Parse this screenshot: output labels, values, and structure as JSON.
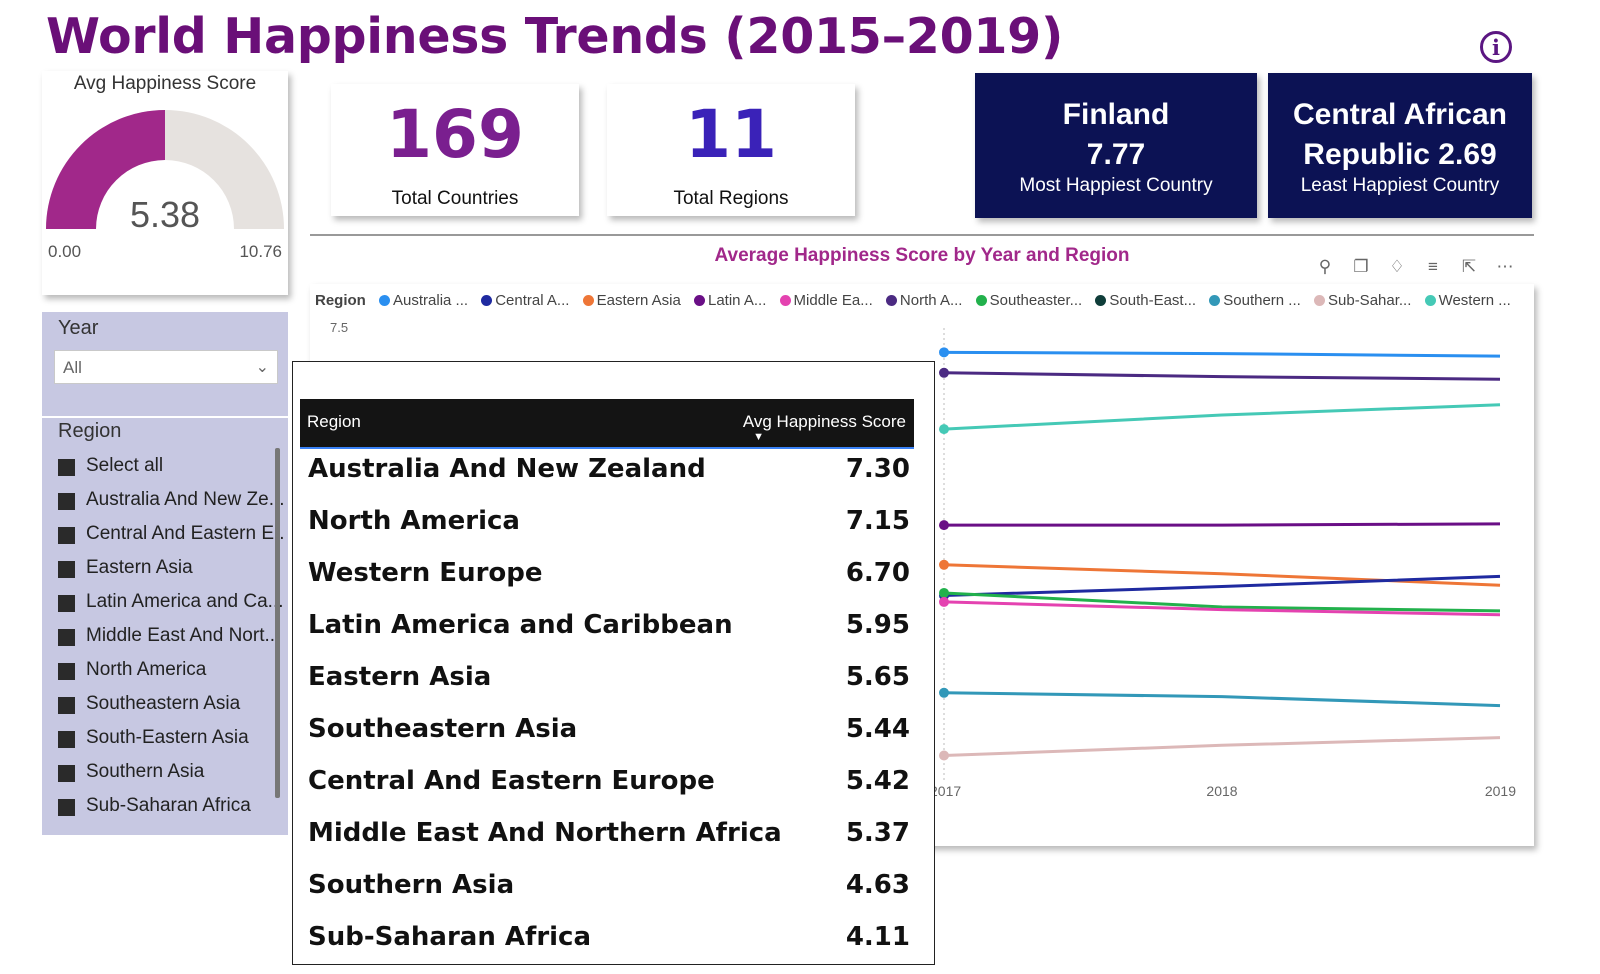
{
  "title": "World Happiness Trends (2015–2019)",
  "info_icon": "i",
  "gauge": {
    "title": "Avg Happiness Score",
    "value": 5.38,
    "value_label": "5.38",
    "min": "0.00",
    "max": "10.76",
    "fill_color": "#a1288a",
    "track_color": "#e6e2df"
  },
  "kpi_countries": {
    "value": "169",
    "label": "Total Countries",
    "color": "#7a1f8f"
  },
  "kpi_regions": {
    "value": "11",
    "label": "Total Regions",
    "color": "#3a22b8"
  },
  "happiest": {
    "line1": "Finland",
    "line2": "7.77",
    "label": "Most Happiest Country"
  },
  "least": {
    "line1": "Central African",
    "line2": "Republic 2.69",
    "label": "Least Happiest Country"
  },
  "year_slicer": {
    "label": "Year",
    "value": "All"
  },
  "region_slicer": {
    "label": "Region",
    "items": [
      "Select all",
      "Australia And New Ze...",
      "Central And Eastern E...",
      "Eastern Asia",
      "Latin America and Ca...",
      "Middle East And Nort...",
      "North America",
      "Southeastern Asia",
      "South-Eastern Asia",
      "Southern Asia",
      "Sub-Saharan Africa"
    ]
  },
  "chart_icons": [
    "pin-icon",
    "copy-icon",
    "bell-icon",
    "filter-icon",
    "expand-icon",
    "more-icon"
  ],
  "chart_data": {
    "type": "line",
    "title": "Average Happiness Score by Year and Region",
    "legend_title": "Region",
    "legend": [
      "Australia ...",
      "Central A...",
      "Eastern Asia",
      "Latin A...",
      "Middle Ea...",
      "North A...",
      "Southeaster...",
      "South-East...",
      "Southern ...",
      "Sub-Sahar...",
      "Western ..."
    ],
    "y_tick": "7.5",
    "x": [
      "2017",
      "2018",
      "2019"
    ],
    "series": [
      {
        "name": "Australia ...",
        "color": "#2a8ff0",
        "values": [
          7.31,
          7.3,
          7.28
        ]
      },
      {
        "name": "North A...",
        "color": "#4b2a82",
        "values": [
          7.15,
          7.12,
          7.1
        ]
      },
      {
        "name": "Western ...",
        "color": "#45c9b6",
        "values": [
          6.71,
          6.82,
          6.9
        ]
      },
      {
        "name": "Latin A...",
        "color": "#6a0f86",
        "values": [
          5.96,
          5.96,
          5.97
        ]
      },
      {
        "name": "Eastern Asia",
        "color": "#ee7637",
        "values": [
          5.65,
          5.58,
          5.49
        ]
      },
      {
        "name": "Central A...",
        "color": "#1f2aa0",
        "values": [
          5.41,
          5.48,
          5.56
        ]
      },
      {
        "name": "Southeaster...",
        "color": "#22b14c",
        "values": [
          5.43,
          5.32,
          5.29
        ]
      },
      {
        "name": "Middle Ea...",
        "color": "#e442b0",
        "values": [
          5.36,
          5.3,
          5.26
        ]
      },
      {
        "name": "Southern ...",
        "color": "#3298b8",
        "values": [
          4.65,
          4.62,
          4.55
        ]
      },
      {
        "name": "Sub-Sahar...",
        "color": "#dcb8b8",
        "values": [
          4.16,
          4.24,
          4.3
        ]
      }
    ],
    "legend_colors": {
      "Australia ...": "#2a8ff0",
      "Central A...": "#1f2aa0",
      "Eastern Asia": "#ee7637",
      "Latin A...": "#6a0f86",
      "Middle Ea...": "#e442b0",
      "North A...": "#4b2a82",
      "Southeaster...": "#22b14c",
      "South-East...": "#0f3d3a",
      "Southern ...": "#3298b8",
      "Sub-Sahar...": "#dcb8b8",
      "Western ...": "#45c9b6"
    }
  },
  "tooltip": {
    "col_region": "Region",
    "col_score": "Avg Happiness Score",
    "rows": [
      {
        "region": "Australia And New Zealand",
        "score": "7.30"
      },
      {
        "region": "North America",
        "score": "7.15"
      },
      {
        "region": "Western Europe",
        "score": "6.70"
      },
      {
        "region": "Latin America and Caribbean",
        "score": "5.95"
      },
      {
        "region": "Eastern Asia",
        "score": "5.65"
      },
      {
        "region": "Southeastern Asia",
        "score": "5.44"
      },
      {
        "region": "Central And Eastern Europe",
        "score": "5.42"
      },
      {
        "region": "Middle East And Northern Africa",
        "score": "5.37"
      },
      {
        "region": "Southern Asia",
        "score": "4.63"
      },
      {
        "region": "Sub-Saharan Africa",
        "score": "4.11"
      }
    ]
  }
}
